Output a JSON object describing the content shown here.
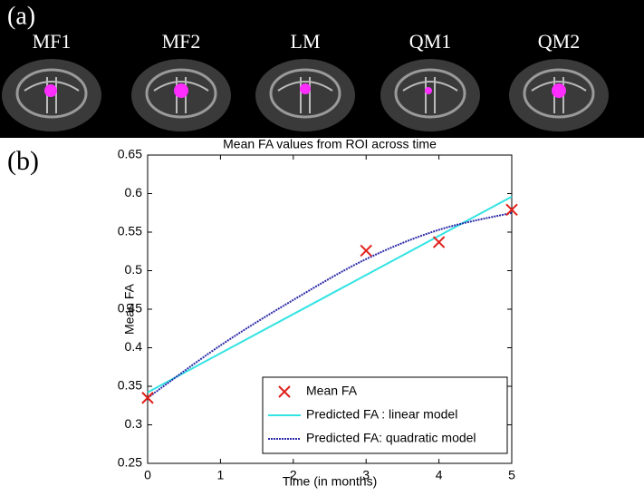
{
  "panel_a": {
    "label": "(a)",
    "images": [
      "MF1",
      "MF2",
      "LM",
      "QM1",
      "QM2"
    ]
  },
  "chart_data": {
    "type": "line",
    "panel_label": "(b)",
    "title": "Mean FA values from ROI across time",
    "x_label": "Time (in months)",
    "y_label": "Mean FA",
    "xlim": [
      0,
      5
    ],
    "xticks": [
      0,
      1,
      2,
      3,
      4,
      5
    ],
    "ylim": [
      0.25,
      0.65
    ],
    "yticks": [
      0.25,
      0.3,
      0.35,
      0.4,
      0.45,
      0.5,
      0.55,
      0.6,
      0.65
    ],
    "grid": false,
    "legend": "lower right",
    "series": [
      {
        "name": "Mean FA",
        "kind": "scatter",
        "color": "#e0201b",
        "x": [
          0,
          3,
          4,
          5
        ],
        "values": [
          0.335,
          0.526,
          0.537,
          0.579
        ]
      },
      {
        "name": "Predicted FA : linear model",
        "kind": "line",
        "color": "#33e3e3",
        "x": [
          0,
          5
        ],
        "values": [
          0.342,
          0.596
        ]
      },
      {
        "name": "Predicted FA: quadratic model",
        "kind": "dotted",
        "color": "#2b2ba8",
        "x": [
          0,
          1,
          2,
          3,
          4,
          5
        ],
        "values": [
          0.335,
          0.403,
          0.462,
          0.515,
          0.553,
          0.575
        ]
      }
    ]
  }
}
